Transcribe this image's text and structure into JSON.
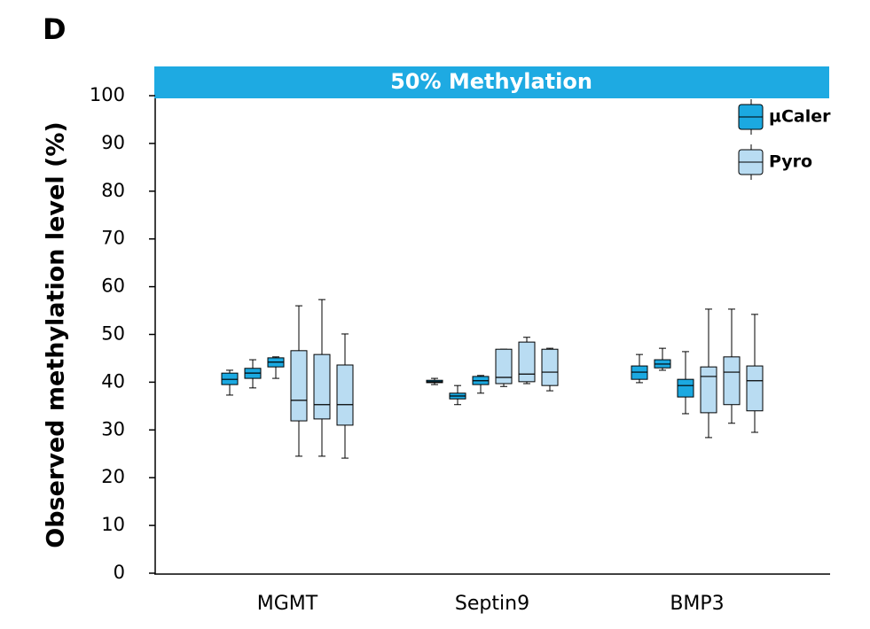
{
  "chart_data": {
    "type": "box",
    "panel_label": "D",
    "banner": "50% Methylation",
    "y_label": "Observed methylation level (%)",
    "categories": [
      "MGMT",
      "Septin9",
      "BMP3"
    ],
    "ylim": [
      0,
      100
    ],
    "yticks": [
      0,
      10,
      20,
      30,
      40,
      50,
      60,
      70,
      80,
      90,
      100
    ],
    "legend": "top-right",
    "series": [
      {
        "name": "µCaler",
        "color": "#1ba9e1",
        "values": [
          [
            {
              "min": 37.3,
              "q1": 39.5,
              "median": 40.6,
              "q3": 41.9,
              "max": 42.5
            },
            {
              "min": 38.8,
              "q1": 40.8,
              "median": 41.9,
              "q3": 42.9,
              "max": 44.7
            },
            {
              "min": 40.8,
              "q1": 43.2,
              "median": 44.2,
              "q3": 45.1,
              "max": 45.3
            }
          ],
          [
            {
              "min": 39.5,
              "q1": 39.9,
              "median": 40.1,
              "q3": 40.4,
              "max": 40.8
            },
            {
              "min": 35.3,
              "q1": 36.5,
              "median": 37.1,
              "q3": 37.7,
              "max": 39.3
            },
            {
              "min": 37.7,
              "q1": 39.5,
              "median": 40.3,
              "q3": 41.2,
              "max": 41.4
            }
          ],
          [
            {
              "min": 39.9,
              "q1": 40.6,
              "median": 42.1,
              "q3": 43.4,
              "max": 45.8
            },
            {
              "min": 42.5,
              "q1": 43.0,
              "median": 43.8,
              "q3": 44.7,
              "max": 47.1
            },
            {
              "min": 33.4,
              "q1": 36.9,
              "median": 39.3,
              "q3": 40.6,
              "max": 46.4
            }
          ]
        ]
      },
      {
        "name": "Pyro",
        "color": "#b9dcf2",
        "values": [
          [
            {
              "min": 24.5,
              "q1": 31.9,
              "median": 36.2,
              "q3": 46.6,
              "max": 56.0
            },
            {
              "min": 24.5,
              "q1": 32.3,
              "median": 35.3,
              "q3": 45.8,
              "max": 57.3
            },
            {
              "min": 24.1,
              "q1": 31.0,
              "median": 35.3,
              "q3": 43.6,
              "max": 50.1
            }
          ],
          [
            {
              "min": 39.1,
              "q1": 39.7,
              "median": 41.0,
              "q3": 46.9,
              "max": 46.9
            },
            {
              "min": 39.7,
              "q1": 40.1,
              "median": 41.7,
              "q3": 48.4,
              "max": 49.4
            },
            {
              "min": 38.2,
              "q1": 39.3,
              "median": 42.1,
              "q3": 46.9,
              "max": 47.1
            }
          ],
          [
            {
              "min": 28.4,
              "q1": 33.6,
              "median": 41.2,
              "q3": 43.2,
              "max": 55.3
            },
            {
              "min": 31.4,
              "q1": 35.3,
              "median": 42.1,
              "q3": 45.3,
              "max": 55.3
            },
            {
              "min": 29.5,
              "q1": 34.0,
              "median": 40.3,
              "q3": 43.4,
              "max": 54.2
            }
          ]
        ]
      }
    ]
  }
}
